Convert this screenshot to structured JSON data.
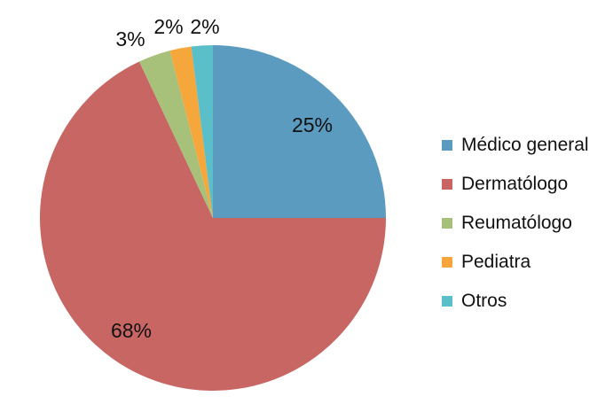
{
  "chart_data": {
    "type": "pie",
    "title": "",
    "categories": [
      "Médico general",
      "Dermatólogo",
      "Reumatólogo",
      "Pediatra",
      "Otros"
    ],
    "values": [
      25,
      68,
      3,
      2,
      2
    ],
    "value_labels": [
      "25%",
      "68%",
      "3%",
      "2%",
      "2%"
    ],
    "colors": [
      "#5b9bc0",
      "#c86663",
      "#a7c17b",
      "#f6a73c",
      "#5bbfc9"
    ],
    "start_angle_deg": 0,
    "direction": "clockwise",
    "legend_position": "right"
  }
}
